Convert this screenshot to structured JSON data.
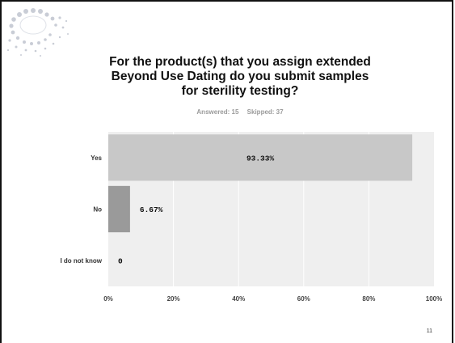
{
  "slide": {
    "title_lines": [
      "For the product(s) that you assign extended",
      "Beyond Use Dating do you submit samples",
      "for sterility testing?"
    ],
    "answered": "Answered: 15",
    "skipped": "Skipped: 37",
    "page_number": "11"
  },
  "chart_data": {
    "type": "bar",
    "orientation": "horizontal",
    "categories": [
      "Yes",
      "No",
      "I do not know"
    ],
    "values": [
      93.33,
      6.67,
      0
    ],
    "value_labels": [
      "93.33%",
      "6.67%",
      "0"
    ],
    "xlim": [
      0,
      100
    ],
    "x_ticks": [
      "0%",
      "20%",
      "40%",
      "60%",
      "80%",
      "100%"
    ],
    "grid": true,
    "colors": {
      "bar_primary": "#c8c8c8",
      "bar_secondary": "#9a9a9a",
      "plot_background": "#efefef",
      "grid": "#ffffff"
    }
  }
}
